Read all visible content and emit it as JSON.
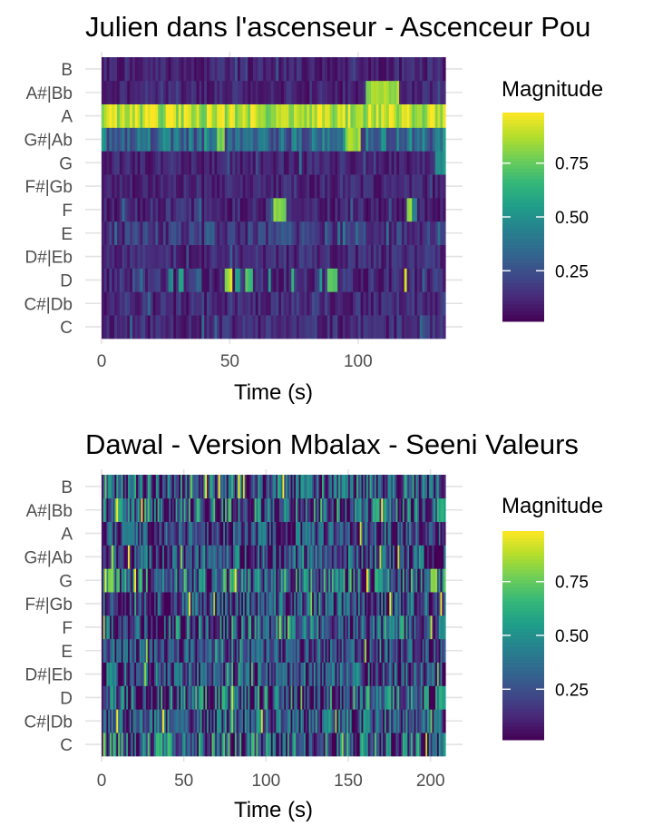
{
  "chart_data": [
    {
      "type": "heatmap",
      "title": "Julien dans l'ascenseur - Ascenceur Pou",
      "xlabel": "Time (s)",
      "ylabel": "",
      "xlim": [
        0,
        134
      ],
      "x_ticks": [
        0,
        50,
        100
      ],
      "pitch_classes": [
        "C",
        "C#|Db",
        "D",
        "D#|Eb",
        "E",
        "F",
        "F#|Gb",
        "G",
        "G#|Ab",
        "A",
        "A#|Bb",
        "B"
      ],
      "frame_seconds": 1,
      "grid": true,
      "legend": {
        "title": "Magnitude",
        "ticks": [
          0.25,
          0.5,
          0.75
        ],
        "tick_labels": [
          "0.25",
          "0.50",
          "0.75"
        ],
        "range": [
          0,
          1
        ],
        "colormap": "viridis",
        "placement": "right"
      },
      "series": [
        {
          "name": "C",
          "base": 0.12,
          "jitter": 0.1,
          "seed": 11,
          "spikes": [
            [
              124,
              126,
              0.3
            ]
          ]
        },
        {
          "name": "C#|Db",
          "base": 0.12,
          "jitter": 0.1,
          "seed": 12,
          "spikes": []
        },
        {
          "name": "D",
          "base": 0.12,
          "jitter": 0.1,
          "seed": 13,
          "spikes": [
            [
              26,
              28,
              0.45
            ],
            [
              30,
              32,
              0.55
            ],
            [
              37,
              39,
              0.3
            ],
            [
              48,
              49,
              0.85
            ],
            [
              49,
              51,
              0.9
            ],
            [
              52,
              54,
              0.6
            ],
            [
              56,
              59,
              0.7
            ],
            [
              65,
              66,
              0.5
            ],
            [
              74,
              75,
              0.6
            ],
            [
              85,
              86,
              0.5
            ],
            [
              88,
              92,
              0.75
            ],
            [
              118,
              119,
              0.9
            ]
          ]
        },
        {
          "name": "D#|Eb",
          "base": 0.12,
          "jitter": 0.1,
          "seed": 14,
          "spikes": []
        },
        {
          "name": "E",
          "base": 0.16,
          "jitter": 0.12,
          "seed": 15,
          "spikes": [
            [
              40,
              44,
              0.3
            ],
            [
              70,
              74,
              0.3
            ]
          ]
        },
        {
          "name": "F",
          "base": 0.11,
          "jitter": 0.1,
          "seed": 16,
          "spikes": [
            [
              67,
              72,
              0.82
            ],
            [
              119,
              121,
              0.8
            ],
            [
              121,
              123,
              0.4
            ],
            [
              8,
              9,
              0.4
            ]
          ]
        },
        {
          "name": "F#|Gb",
          "base": 0.1,
          "jitter": 0.08,
          "seed": 17,
          "spikes": []
        },
        {
          "name": "G",
          "base": 0.1,
          "jitter": 0.08,
          "seed": 18,
          "spikes": [
            [
              77,
              78,
              0.45
            ],
            [
              130,
              134,
              0.5
            ]
          ]
        },
        {
          "name": "G#|Ab",
          "base": 0.35,
          "jitter": 0.2,
          "seed": 19,
          "spikes": [
            [
              45,
              48,
              0.8
            ],
            [
              95,
              101,
              0.85
            ],
            [
              132,
              134,
              0.3
            ]
          ]
        },
        {
          "name": "A",
          "base": 0.88,
          "jitter": 0.15,
          "seed": 20,
          "spikes": []
        },
        {
          "name": "A#|Bb",
          "base": 0.1,
          "jitter": 0.08,
          "seed": 21,
          "spikes": [
            [
              103,
              116,
              0.85
            ]
          ]
        },
        {
          "name": "B",
          "base": 0.1,
          "jitter": 0.08,
          "seed": 22,
          "spikes": []
        }
      ]
    },
    {
      "type": "heatmap",
      "title": "Dawal - Version Mbalax - Seeni Valeurs",
      "xlabel": "Time (s)",
      "ylabel": "",
      "xlim": [
        0,
        209
      ],
      "x_ticks": [
        0,
        50,
        100,
        150,
        200
      ],
      "pitch_classes": [
        "C",
        "C#|Db",
        "D",
        "D#|Eb",
        "E",
        "F",
        "F#|Gb",
        "G",
        "G#|Ab",
        "A",
        "A#|Bb",
        "B"
      ],
      "frame_seconds": 1,
      "grid": true,
      "legend": {
        "title": "Magnitude",
        "ticks": [
          0.25,
          0.5,
          0.75
        ],
        "tick_labels": [
          "0.25",
          "0.50",
          "0.75"
        ],
        "range": [
          0,
          1
        ],
        "colormap": "viridis",
        "placement": "right"
      },
      "series": [
        {
          "name": "C",
          "base": 0.3,
          "jitter": 0.45,
          "seed": 31,
          "spikes": [
            [
              1,
              2,
              0.9
            ]
          ]
        },
        {
          "name": "C#|Db",
          "base": 0.25,
          "jitter": 0.35,
          "seed": 32,
          "spikes": []
        },
        {
          "name": "D",
          "base": 0.28,
          "jitter": 0.45,
          "seed": 33,
          "spikes": [
            [
              205,
              209,
              0.6
            ]
          ]
        },
        {
          "name": "D#|Eb",
          "base": 0.22,
          "jitter": 0.35,
          "seed": 34,
          "spikes": []
        },
        {
          "name": "E",
          "base": 0.2,
          "jitter": 0.3,
          "seed": 35,
          "spikes": []
        },
        {
          "name": "F",
          "base": 0.25,
          "jitter": 0.4,
          "seed": 36,
          "spikes": [
            [
              205,
              209,
              0.5
            ]
          ]
        },
        {
          "name": "F#|Gb",
          "base": 0.22,
          "jitter": 0.35,
          "seed": 37,
          "spikes": []
        },
        {
          "name": "G",
          "base": 0.3,
          "jitter": 0.45,
          "seed": 38,
          "spikes": [
            [
              4,
              7,
              0.85
            ],
            [
              200,
              204,
              0.85
            ]
          ]
        },
        {
          "name": "G#|Ab",
          "base": 0.22,
          "jitter": 0.35,
          "seed": 39,
          "spikes": []
        },
        {
          "name": "A",
          "base": 0.2,
          "jitter": 0.3,
          "seed": 40,
          "spikes": []
        },
        {
          "name": "A#|Bb",
          "base": 0.28,
          "jitter": 0.45,
          "seed": 41,
          "spikes": [
            [
              205,
              209,
              0.6
            ]
          ]
        },
        {
          "name": "B",
          "base": 0.26,
          "jitter": 0.4,
          "seed": 42,
          "spikes": []
        }
      ]
    }
  ]
}
